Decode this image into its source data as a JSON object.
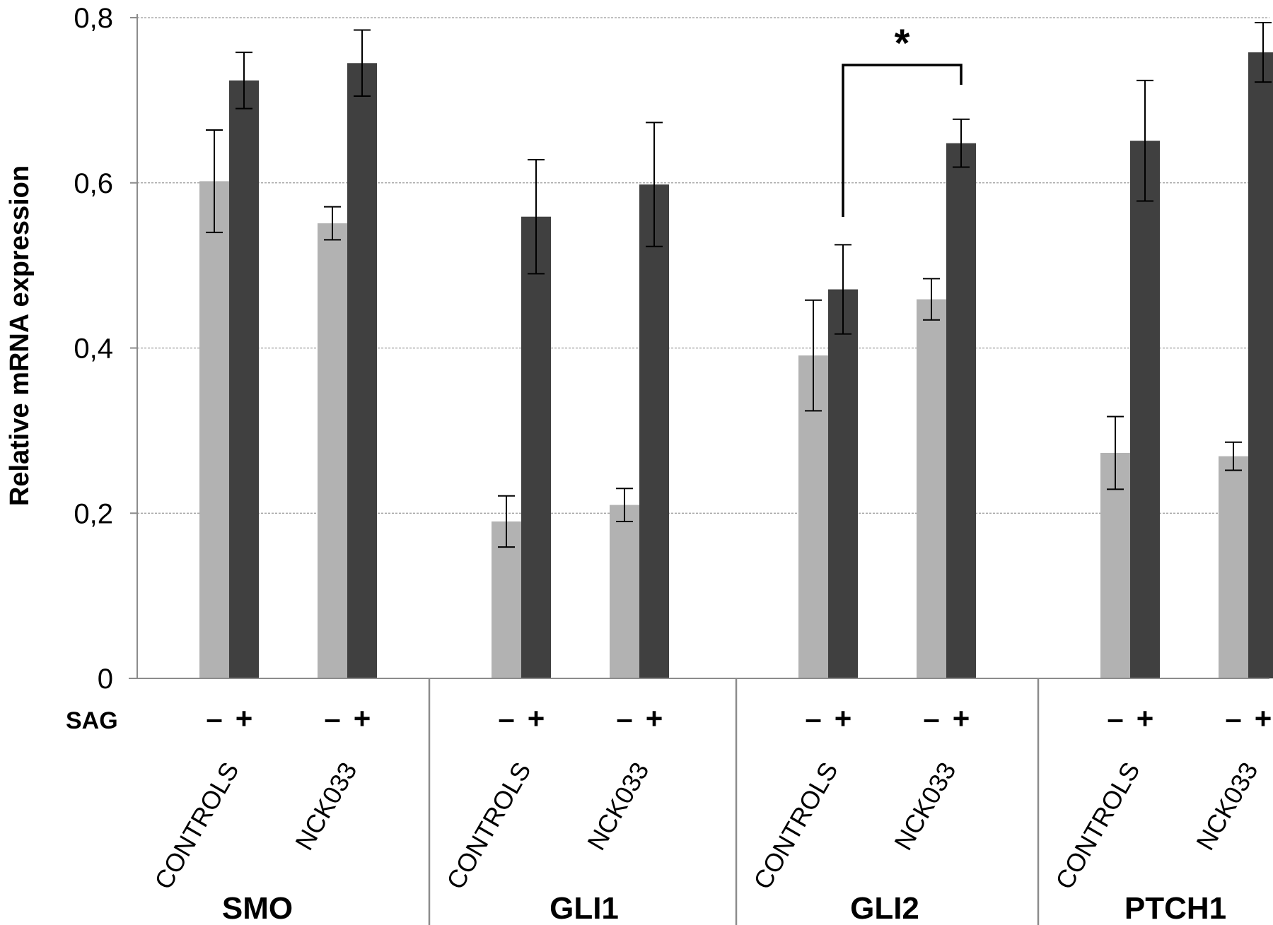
{
  "chart_data": {
    "type": "bar",
    "title": "",
    "xlabel": "",
    "ylabel": "Relative mRNA expression",
    "ylim": [
      0,
      0.8
    ],
    "yticks": [
      0,
      0.2,
      0.4,
      0.6,
      0.8
    ],
    "ytick_labels": [
      "0",
      "0,2",
      "0,4",
      "0,6",
      "0,8"
    ],
    "grid": true,
    "treatment_label": "SAG",
    "treatment_signs": [
      "–",
      "+"
    ],
    "genes": [
      {
        "name": "SMO",
        "groups": [
          {
            "label": "CONTROLS",
            "values": [
              0.602,
              0.724
            ],
            "errors": [
              0.062,
              0.034
            ]
          },
          {
            "label": "NCK033",
            "values": [
              0.551,
              0.745
            ],
            "errors": [
              0.02,
              0.04
            ]
          }
        ]
      },
      {
        "name": "GLI1",
        "groups": [
          {
            "label": "CONTROLS",
            "values": [
              0.19,
              0.559
            ],
            "errors": [
              0.031,
              0.069
            ]
          },
          {
            "label": "NCK033",
            "values": [
              0.21,
              0.598
            ],
            "errors": [
              0.02,
              0.075
            ]
          }
        ]
      },
      {
        "name": "GLI2",
        "groups": [
          {
            "label": "CONTROLS",
            "values": [
              0.391,
              0.471
            ],
            "errors": [
              0.067,
              0.054
            ]
          },
          {
            "label": "NCK033",
            "values": [
              0.459,
              0.648
            ],
            "errors": [
              0.025,
              0.029
            ]
          }
        ]
      },
      {
        "name": "PTCH1",
        "groups": [
          {
            "label": "CONTROLS",
            "values": [
              0.273,
              0.651
            ],
            "errors": [
              0.044,
              0.073
            ]
          },
          {
            "label": "NCK033",
            "values": [
              0.269,
              0.758
            ],
            "errors": [
              0.017,
              0.036
            ]
          }
        ]
      }
    ],
    "series_colors": [
      "#b2b2b2",
      "#404040"
    ],
    "annotation": {
      "text": "*",
      "gene": "GLI2"
    }
  }
}
